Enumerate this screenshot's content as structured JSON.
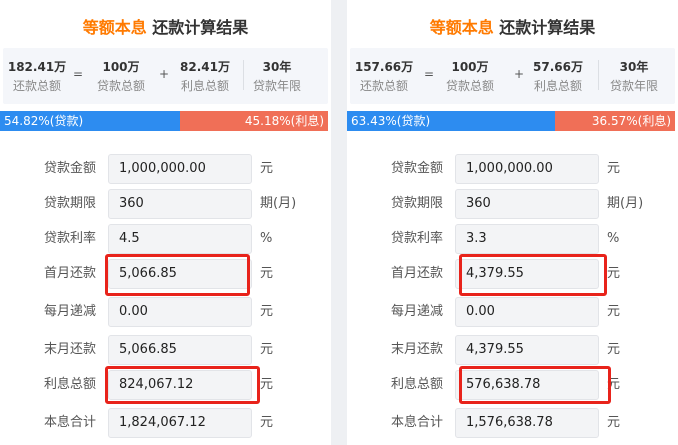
{
  "left": {
    "title_em": "等额本息",
    "title_rest": "还款计算结果",
    "summary": {
      "total": "182.41万",
      "total_label": "还款总额",
      "eq": "=",
      "principal": "100万",
      "principal_label": "贷款总额",
      "plus": "+",
      "interest": "82.41万",
      "interest_label": "利息总额",
      "years": "30年",
      "years_label": "贷款年限"
    },
    "bar": {
      "loan_label": "54.82%(贷款)",
      "loan_fraction": 0.5482,
      "interest_label": "45.18%(利息)"
    },
    "rows": [
      {
        "label": "贷款金额",
        "value": "1,000,000.00",
        "unit": "元"
      },
      {
        "label": "贷款期限",
        "value": "360",
        "unit": "期(月)"
      },
      {
        "label": "贷款利率",
        "value": "4.5",
        "unit": "%"
      },
      {
        "label": "首月还款",
        "value": "5,066.85",
        "unit": "元"
      },
      {
        "label": "每月递减",
        "value": "0.00",
        "unit": "元"
      },
      {
        "label": "末月还款",
        "value": "5,066.85",
        "unit": "元"
      },
      {
        "label": "利息总额",
        "value": "824,067.12",
        "unit": "元"
      },
      {
        "label": "本息合计",
        "value": "1,824,067.12",
        "unit": "元"
      }
    ]
  },
  "right": {
    "title_em": "等额本息",
    "title_rest": "还款计算结果",
    "summary": {
      "total": "157.66万",
      "total_label": "还款总额",
      "eq": "=",
      "principal": "100万",
      "principal_label": "贷款总额",
      "plus": "+",
      "interest": "57.66万",
      "interest_label": "利息总额",
      "years": "30年",
      "years_label": "贷款年限"
    },
    "bar": {
      "loan_label": "63.43%(贷款)",
      "loan_fraction": 0.6343,
      "interest_label": "36.57%(利息)"
    },
    "rows": [
      {
        "label": "贷款金额",
        "value": "1,000,000.00",
        "unit": "元"
      },
      {
        "label": "贷款期限",
        "value": "360",
        "unit": "期(月)"
      },
      {
        "label": "贷款利率",
        "value": "3.3",
        "unit": "%"
      },
      {
        "label": "首月还款",
        "value": "4,379.55",
        "unit": "元"
      },
      {
        "label": "每月递减",
        "value": "0.00",
        "unit": "元"
      },
      {
        "label": "末月还款",
        "value": "4,379.55",
        "unit": "元"
      },
      {
        "label": "利息总额",
        "value": "576,638.78",
        "unit": "元"
      },
      {
        "label": "本息合计",
        "value": "1,576,638.78",
        "unit": "元"
      }
    ]
  },
  "highlight_color": "#e8231b"
}
